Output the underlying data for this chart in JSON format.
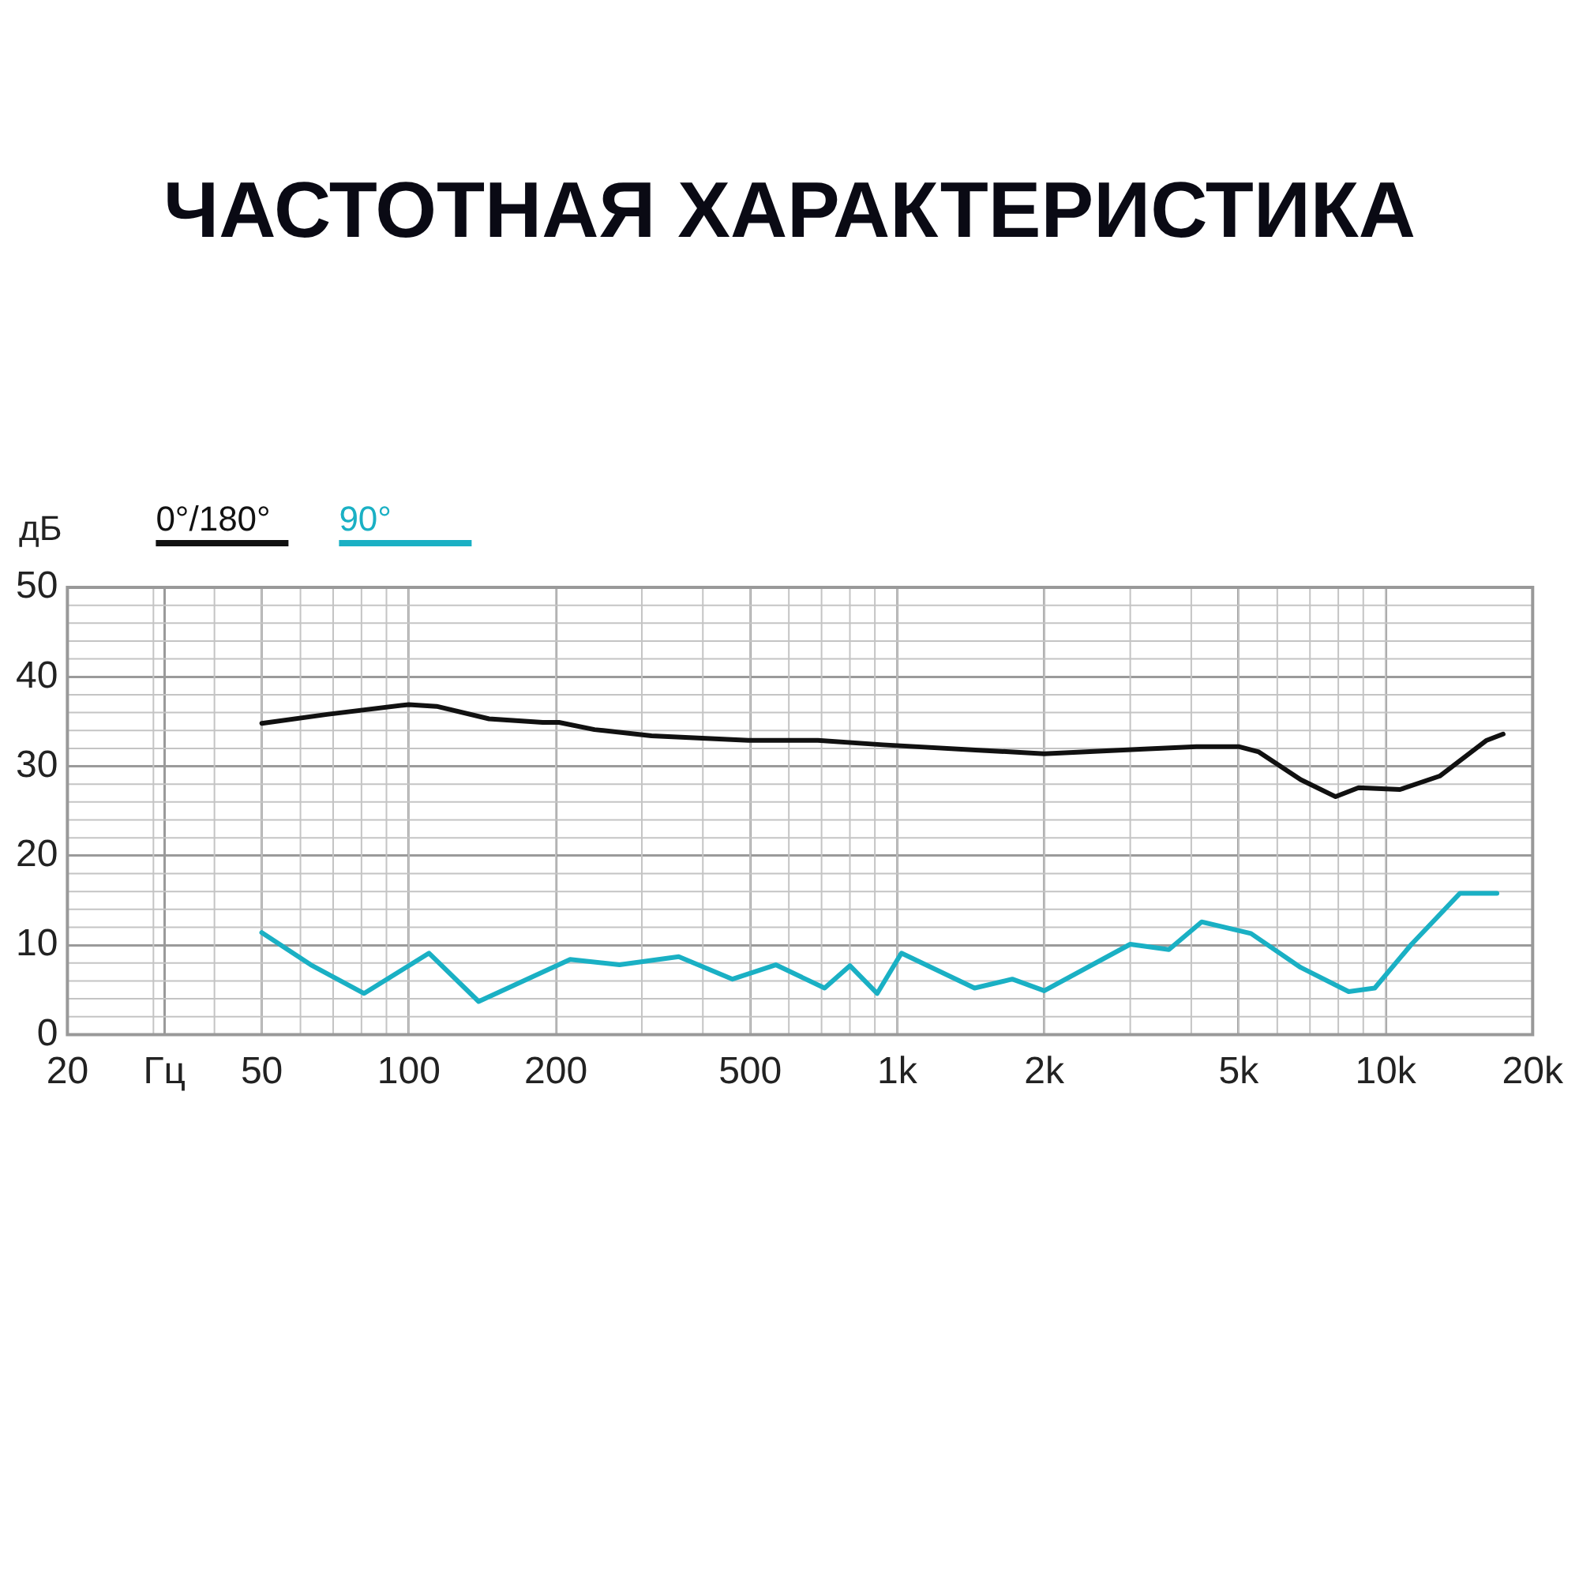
{
  "chart_data": {
    "type": "line",
    "title": "ЧАСТОТНАЯ ХАРАКТЕРИСТИКА",
    "ylabel": "дБ",
    "log": "x",
    "xlim": [
      20,
      20000
    ],
    "xticks": [
      20,
      {
        "value": 31.6,
        "label": "Гц"
      },
      50,
      100,
      200,
      500,
      {
        "value": 1000,
        "label": "1k"
      },
      {
        "value": 2000,
        "label": "2k"
      },
      {
        "value": 5000,
        "label": "5k"
      },
      {
        "value": 10000,
        "label": "10k"
      },
      {
        "value": 20000,
        "label": "20k"
      }
    ],
    "ylim": [
      0,
      50
    ],
    "yticks": [
      0,
      10,
      20,
      30,
      40,
      50
    ],
    "grid": true,
    "legend": "top left",
    "marker": "none",
    "line_style": "solid",
    "series": [
      {
        "name": "0°/180°",
        "color": "#111111",
        "x": [
          50,
          68,
          100,
          114,
          146,
          188,
          203,
          240,
          314,
          496,
          688,
          935,
          1470,
          2000,
          3140,
          4100,
          5000,
          5500,
          6700,
          7900,
          8800,
          10700,
          12900,
          16100,
          17400
        ],
        "values": [
          34.8,
          35.8,
          36.9,
          36.7,
          35.3,
          34.9,
          34.9,
          34.1,
          33.4,
          32.9,
          32.9,
          32.4,
          31.8,
          31.4,
          31.9,
          32.2,
          32.2,
          31.6,
          28.5,
          26.6,
          27.6,
          27.4,
          28.9,
          32.9,
          33.6
        ]
      },
      {
        "name": "90°",
        "color": "#1ab0c4",
        "x": [
          50,
          63,
          81,
          110,
          139,
          214,
          270,
          357,
          460,
          564,
          710,
          800,
          910,
          1020,
          1440,
          1720,
          2000,
          3000,
          3600,
          4200,
          5300,
          6700,
          8400,
          9500,
          11300,
          14200,
          16900
        ],
        "values": [
          11.4,
          7.8,
          4.6,
          9.1,
          3.7,
          8.4,
          7.8,
          8.7,
          6.2,
          7.8,
          5.2,
          7.7,
          4.6,
          9.1,
          5.2,
          6.2,
          4.9,
          10.1,
          9.5,
          12.6,
          11.3,
          7.5,
          4.8,
          5.2,
          10.1,
          15.8,
          15.8
        ]
      }
    ]
  }
}
